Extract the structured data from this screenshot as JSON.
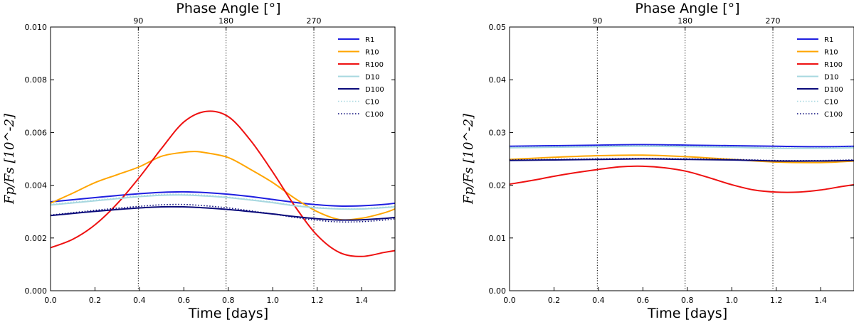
{
  "colors": {
    "R1": "#1f1fe0",
    "R10": "#ffa500",
    "R100": "#ee1111",
    "D10": "#a8d8e0",
    "D100": "#0a0a7a",
    "C10": "#a8d8e0",
    "C100": "#0a0a7a"
  },
  "chart_data": [
    {
      "type": "line",
      "name": "left-panel",
      "xlabel": "Time [days]",
      "ylabel": "Fp/Fs [10^-2]",
      "top_axis_label": "Phase Angle [°]",
      "xlim": [
        0,
        1.55
      ],
      "ylim": [
        0,
        0.01
      ],
      "x_ticks": [
        "0.0",
        "0.2",
        "0.4",
        "0.6",
        "0.8",
        "1.0",
        "1.2",
        "1.4"
      ],
      "y_ticks": [
        "0.000",
        "0.002",
        "0.004",
        "0.006",
        "0.008",
        "0.010"
      ],
      "top_ticks": [
        "90",
        "180",
        "270"
      ],
      "vlines": [
        0.395,
        0.79,
        1.185
      ],
      "legend": [
        "R1",
        "R10",
        "R100",
        "D10",
        "D100",
        "C10",
        "C100"
      ],
      "series": [
        {
          "name": "R1",
          "style": "solid",
          "x": [
            0.0,
            0.1,
            0.2,
            0.3,
            0.4,
            0.5,
            0.6,
            0.7,
            0.8,
            0.9,
            1.0,
            1.1,
            1.2,
            1.3,
            1.4,
            1.5,
            1.55
          ],
          "y": [
            0.00337,
            0.00345,
            0.00353,
            0.00361,
            0.00368,
            0.00373,
            0.00375,
            0.00372,
            0.00366,
            0.00357,
            0.00346,
            0.00335,
            0.00326,
            0.00321,
            0.00322,
            0.00327,
            0.00332
          ]
        },
        {
          "name": "R10",
          "style": "solid",
          "x": [
            0.0,
            0.1,
            0.2,
            0.3,
            0.4,
            0.5,
            0.6,
            0.65,
            0.7,
            0.8,
            0.9,
            1.0,
            1.1,
            1.2,
            1.3,
            1.4,
            1.5,
            1.55
          ],
          "y": [
            0.00332,
            0.0037,
            0.0041,
            0.0044,
            0.0047,
            0.0051,
            0.00525,
            0.00528,
            0.00523,
            0.00505,
            0.0046,
            0.0041,
            0.0035,
            0.003,
            0.0027,
            0.00275,
            0.00295,
            0.0031
          ]
        },
        {
          "name": "R100",
          "style": "solid",
          "x": [
            0.0,
            0.1,
            0.2,
            0.3,
            0.4,
            0.5,
            0.6,
            0.7,
            0.8,
            0.9,
            1.0,
            1.1,
            1.2,
            1.3,
            1.4,
            1.5,
            1.55
          ],
          "y": [
            0.00163,
            0.00195,
            0.0025,
            0.0033,
            0.0043,
            0.0054,
            0.0064,
            0.0068,
            0.0066,
            0.0057,
            0.0045,
            0.0032,
            0.0021,
            0.00145,
            0.0013,
            0.00145,
            0.00152
          ]
        },
        {
          "name": "D10",
          "style": "solid",
          "x": [
            0.0,
            0.1,
            0.2,
            0.3,
            0.4,
            0.5,
            0.6,
            0.7,
            0.8,
            0.9,
            1.0,
            1.1,
            1.2,
            1.3,
            1.4,
            1.5,
            1.55
          ],
          "y": [
            0.00325,
            0.00333,
            0.00341,
            0.00349,
            0.00357,
            0.00362,
            0.00363,
            0.00359,
            0.00353,
            0.00344,
            0.00334,
            0.00322,
            0.00314,
            0.0031,
            0.0031,
            0.00315,
            0.00318
          ]
        },
        {
          "name": "D100",
          "style": "solid",
          "x": [
            0.0,
            0.1,
            0.2,
            0.3,
            0.4,
            0.5,
            0.6,
            0.7,
            0.8,
            0.9,
            1.0,
            1.1,
            1.2,
            1.3,
            1.4,
            1.5,
            1.55
          ],
          "y": [
            0.00285,
            0.00293,
            0.00301,
            0.00308,
            0.00314,
            0.00318,
            0.00318,
            0.00314,
            0.00308,
            0.003,
            0.00291,
            0.00281,
            0.00273,
            0.00268,
            0.00269,
            0.00274,
            0.00278
          ]
        },
        {
          "name": "C10",
          "style": "dotted",
          "x": [
            0.0,
            0.1,
            0.2,
            0.3,
            0.4,
            0.5,
            0.6,
            0.7,
            0.8,
            0.9,
            1.0,
            1.1,
            1.2,
            1.3,
            1.4,
            1.5,
            1.55
          ],
          "y": [
            0.00328,
            0.00336,
            0.00344,
            0.00352,
            0.0036,
            0.00365,
            0.00366,
            0.00362,
            0.00355,
            0.00346,
            0.00336,
            0.00324,
            0.00316,
            0.00312,
            0.00312,
            0.00317,
            0.0032
          ]
        },
        {
          "name": "C100",
          "style": "dotted",
          "x": [
            0.0,
            0.1,
            0.2,
            0.3,
            0.4,
            0.5,
            0.6,
            0.7,
            0.8,
            0.9,
            1.0,
            1.1,
            1.2,
            1.3,
            1.4,
            1.5,
            1.55
          ],
          "y": [
            0.00287,
            0.00296,
            0.00305,
            0.00313,
            0.0032,
            0.00326,
            0.00327,
            0.00322,
            0.00314,
            0.00303,
            0.00291,
            0.00278,
            0.00267,
            0.00261,
            0.00262,
            0.00268,
            0.00273
          ]
        }
      ]
    },
    {
      "type": "line",
      "name": "right-panel",
      "xlabel": "Time [days]",
      "ylabel": "Fp/Fs [10^-2]",
      "top_axis_label": "Phase Angle [°]",
      "xlim": [
        0,
        1.55
      ],
      "ylim": [
        0,
        0.05
      ],
      "x_ticks": [
        "0.0",
        "0.2",
        "0.4",
        "0.6",
        "0.8",
        "1.0",
        "1.2",
        "1.4"
      ],
      "y_ticks": [
        "0.00",
        "0.01",
        "0.02",
        "0.03",
        "0.04",
        "0.05"
      ],
      "top_ticks": [
        "90",
        "180",
        "270"
      ],
      "vlines": [
        0.395,
        0.79,
        1.185
      ],
      "legend": [
        "R1",
        "R10",
        "R100",
        "D10",
        "D100",
        "C10",
        "C100"
      ],
      "series": [
        {
          "name": "R1",
          "style": "solid",
          "x": [
            0.0,
            0.2,
            0.4,
            0.6,
            0.8,
            1.0,
            1.2,
            1.4,
            1.55
          ],
          "y": [
            0.0274,
            0.0275,
            0.0276,
            0.0277,
            0.0276,
            0.0275,
            0.0274,
            0.0273,
            0.0274
          ]
        },
        {
          "name": "R10",
          "style": "solid",
          "x": [
            0.0,
            0.2,
            0.4,
            0.6,
            0.8,
            1.0,
            1.2,
            1.4,
            1.55
          ],
          "y": [
            0.0249,
            0.0253,
            0.0256,
            0.0257,
            0.0254,
            0.0249,
            0.0244,
            0.0243,
            0.0246
          ]
        },
        {
          "name": "R100",
          "style": "solid",
          "x": [
            0.0,
            0.1,
            0.2,
            0.3,
            0.4,
            0.5,
            0.6,
            0.7,
            0.8,
            0.9,
            1.0,
            1.1,
            1.2,
            1.3,
            1.4,
            1.5,
            1.55
          ],
          "y": [
            0.0202,
            0.0209,
            0.0217,
            0.0224,
            0.023,
            0.0235,
            0.0236,
            0.0233,
            0.0226,
            0.0214,
            0.0201,
            0.0191,
            0.0187,
            0.0187,
            0.0191,
            0.0198,
            0.0201
          ]
        },
        {
          "name": "D10",
          "style": "solid",
          "x": [
            0.0,
            0.2,
            0.4,
            0.6,
            0.8,
            1.0,
            1.2,
            1.4,
            1.55
          ],
          "y": [
            0.0271,
            0.0272,
            0.0273,
            0.0274,
            0.0273,
            0.0272,
            0.027,
            0.027,
            0.0271
          ]
        },
        {
          "name": "D100",
          "style": "solid",
          "x": [
            0.0,
            0.2,
            0.4,
            0.6,
            0.8,
            1.0,
            1.2,
            1.4,
            1.55
          ],
          "y": [
            0.0247,
            0.0248,
            0.0249,
            0.025,
            0.0249,
            0.0248,
            0.0246,
            0.0246,
            0.0247
          ]
        },
        {
          "name": "C10",
          "style": "dotted",
          "x": [
            0.0,
            0.2,
            0.4,
            0.6,
            0.8,
            1.0,
            1.2,
            1.4,
            1.55
          ],
          "y": [
            0.0272,
            0.0273,
            0.0274,
            0.0275,
            0.0274,
            0.0273,
            0.0271,
            0.0271,
            0.0272
          ]
        },
        {
          "name": "C100",
          "style": "dotted",
          "x": [
            0.0,
            0.2,
            0.4,
            0.6,
            0.8,
            1.0,
            1.2,
            1.4,
            1.55
          ],
          "y": [
            0.0248,
            0.0249,
            0.025,
            0.0251,
            0.025,
            0.0249,
            0.0247,
            0.0247,
            0.0248
          ]
        }
      ]
    }
  ]
}
